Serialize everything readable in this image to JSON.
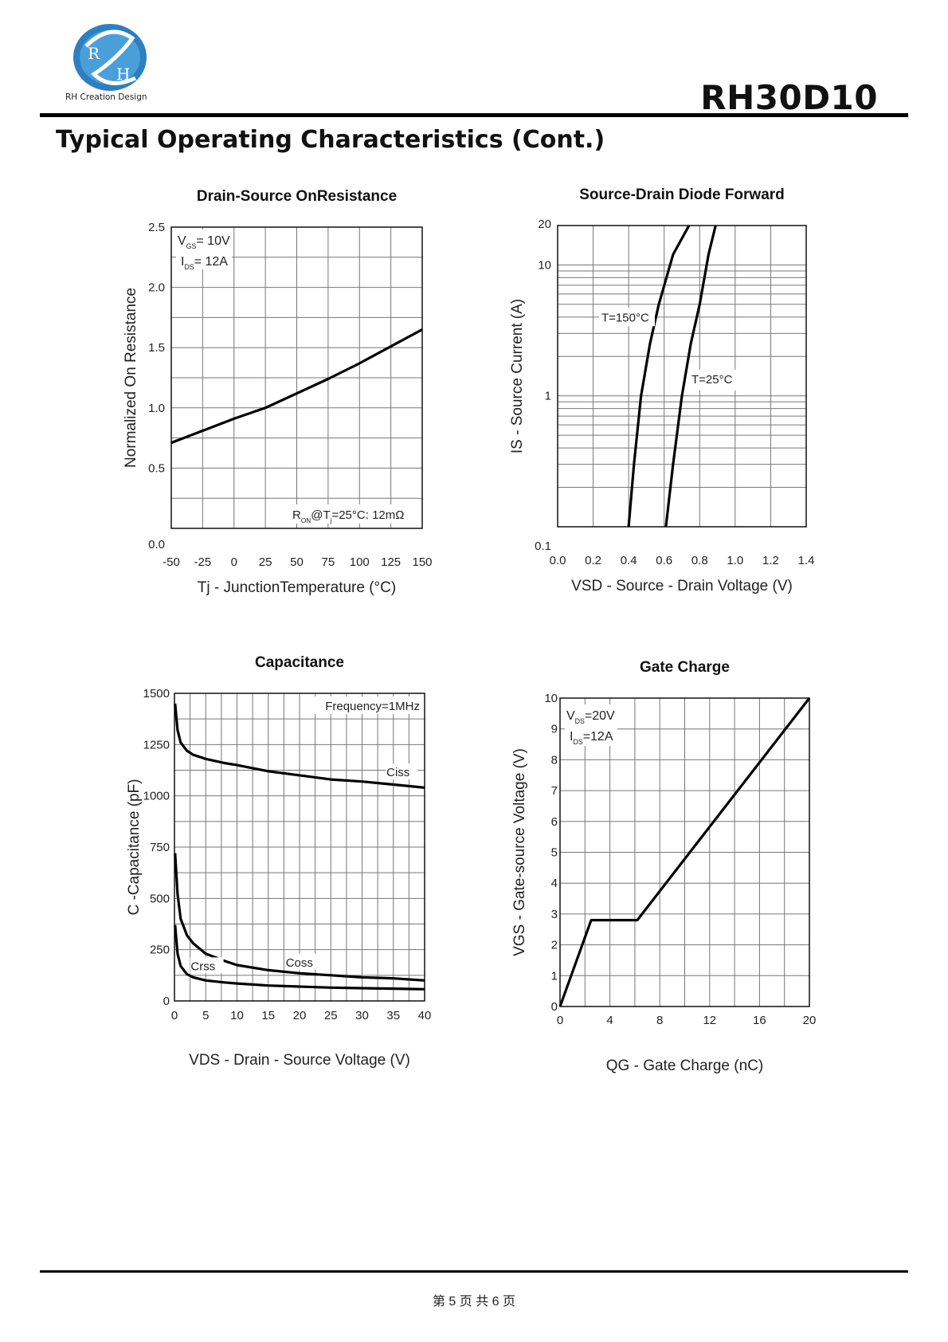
{
  "header": {
    "logo_letters": [
      "R",
      "H"
    ],
    "logo_text": "RH Creation Design",
    "part_number": "RH30D10",
    "page_title": "Typical Operating Characteristics (Cont.)"
  },
  "footer": {
    "page_label": "第 5 页 共 6 页"
  },
  "chart_data": [
    {
      "type": "line",
      "title": "Drain-Source OnResistance",
      "xlabel": "Tj - JunctionTemperature (°C)",
      "ylabel": "Normalized On Resistance",
      "xlim": [
        -50,
        150
      ],
      "ylim": [
        0,
        2.5
      ],
      "x_ticks": [
        "-50",
        "-25",
        "0",
        "25",
        "50",
        "75",
        "100",
        "125",
        "150"
      ],
      "y_ticks": [
        "0.0",
        "0.5",
        "1.0",
        "1.5",
        "2.0",
        "2.5"
      ],
      "grid": true,
      "annotations": [
        {
          "pre": "V",
          "sub": "GS",
          "post": "= 10V"
        },
        {
          "pre": "I",
          "sub": "DS",
          "post": "= 12A"
        },
        {
          "text": "R",
          "sub": "ON",
          "post": "@T",
          "sub2": "j",
          "post2": "=25°C: 12mΩ"
        }
      ],
      "series": [
        {
          "x": [
            -50,
            -25,
            0,
            25,
            50,
            75,
            100,
            125,
            150
          ],
          "y": [
            0.71,
            0.81,
            0.91,
            1.0,
            1.12,
            1.24,
            1.37,
            1.51,
            1.65
          ]
        }
      ]
    },
    {
      "type": "line",
      "title": "Source-Drain Diode Forward",
      "xlabel": "VSD - Source - Drain Voltage (V)",
      "ylabel": "IS - Source Current (A)",
      "xlim": [
        0,
        1.4
      ],
      "ylim": [
        0.1,
        20
      ],
      "yscale": "log",
      "x_ticks": [
        "0.0",
        "0.2",
        "0.4",
        "0.6",
        "0.8",
        "1.0",
        "1.2",
        "1.4"
      ],
      "y_ticks": [
        "0.1",
        "1",
        "10",
        "20"
      ],
      "grid": true,
      "series": [
        {
          "name": "T=150°C",
          "x": [
            0.4,
            0.43,
            0.47,
            0.52,
            0.57,
            0.65,
            0.74
          ],
          "y": [
            0.1,
            0.3,
            1,
            2.5,
            5,
            12,
            20
          ]
        },
        {
          "name": "T=25°C",
          "x": [
            0.61,
            0.65,
            0.7,
            0.75,
            0.8,
            0.85,
            0.89
          ],
          "y": [
            0.1,
            0.3,
            1,
            2.5,
            5,
            12,
            20
          ]
        }
      ]
    },
    {
      "type": "line",
      "title": "Capacitance",
      "xlabel": "VDS - Drain - Source Voltage (V)",
      "ylabel": "C -Capacitance (pF)",
      "xlim": [
        0,
        40
      ],
      "ylim": [
        0,
        1500
      ],
      "x_ticks": [
        "0",
        "5",
        "10",
        "15",
        "20",
        "25",
        "30",
        "35",
        "40"
      ],
      "y_ticks": [
        "0",
        "250",
        "500",
        "750",
        "1000",
        "1250",
        "1500"
      ],
      "grid": true,
      "annotations": [
        "Frequency=1MHz"
      ],
      "series": [
        {
          "name": "Ciss",
          "x": [
            0.1,
            0.5,
            1,
            2,
            3,
            5,
            8,
            10,
            15,
            20,
            25,
            30,
            35,
            40
          ],
          "y": [
            1450,
            1320,
            1260,
            1220,
            1200,
            1180,
            1160,
            1150,
            1120,
            1100,
            1080,
            1070,
            1055,
            1040
          ]
        },
        {
          "name": "Coss",
          "x": [
            0.1,
            0.5,
            1,
            2,
            3,
            5,
            8,
            10,
            15,
            20,
            25,
            30,
            35,
            40
          ],
          "y": [
            720,
            520,
            400,
            320,
            280,
            230,
            195,
            175,
            150,
            135,
            125,
            115,
            110,
            100
          ]
        },
        {
          "name": "Crss",
          "x": [
            0.1,
            0.5,
            1,
            2,
            3,
            5,
            8,
            10,
            15,
            20,
            25,
            30,
            35,
            40
          ],
          "y": [
            370,
            230,
            170,
            130,
            115,
            100,
            90,
            85,
            75,
            70,
            65,
            62,
            60,
            57
          ]
        }
      ]
    },
    {
      "type": "line",
      "title": "Gate Charge",
      "xlabel": "QG - Gate Charge (nC)",
      "ylabel": "VGS - Gate-source Voltage (V)",
      "xlim": [
        0,
        20
      ],
      "ylim": [
        0,
        10
      ],
      "x_ticks": [
        "0",
        "4",
        "8",
        "12",
        "16",
        "20"
      ],
      "y_ticks": [
        "0",
        "1",
        "2",
        "3",
        "4",
        "5",
        "6",
        "7",
        "8",
        "9",
        "10"
      ],
      "grid": true,
      "annotations": [
        {
          "pre": "V",
          "sub": "DS",
          "post": "=20V"
        },
        {
          "pre": "I",
          "sub": "DS",
          "post": "=12A"
        }
      ],
      "series": [
        {
          "x": [
            0,
            2.5,
            6.2,
            20
          ],
          "y": [
            0,
            2.8,
            2.8,
            10
          ]
        }
      ]
    }
  ]
}
